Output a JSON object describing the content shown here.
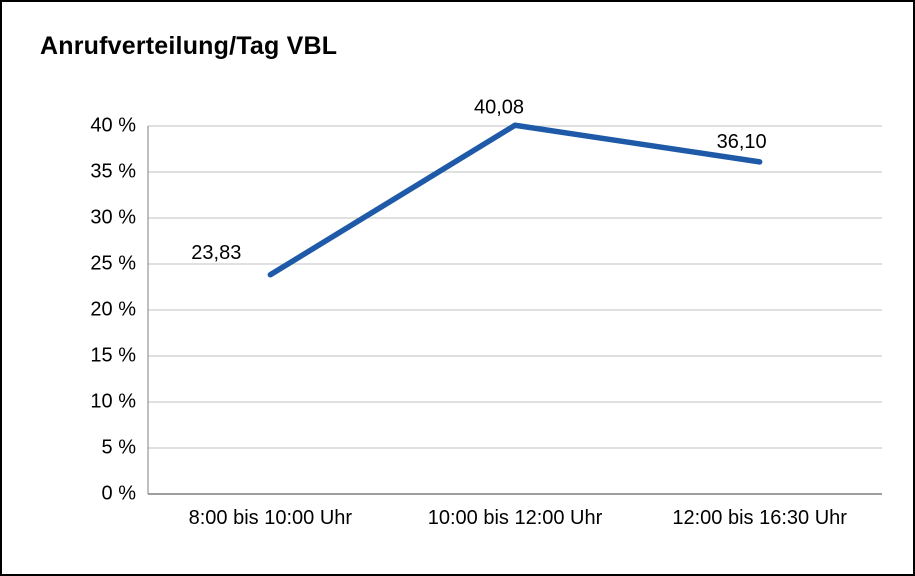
{
  "title": "Anrufverteilung/Tag VBL",
  "colors": {
    "line": "#1f5aa8",
    "grid": "#c0c0c0",
    "axis": "#7f7f7f",
    "text": "#000000",
    "frame_border": "#000000",
    "background": "#ffffff"
  },
  "chart_data": {
    "type": "line",
    "title": "Anrufverteilung/Tag VBL",
    "categories": [
      "8:00 bis 10:00 Uhr",
      "10:00 bis 12:00 Uhr",
      "12:00 bis 16:30 Uhr"
    ],
    "values": [
      23.83,
      40.08,
      36.1
    ],
    "value_labels": [
      "23,83",
      "40,08",
      "36,10"
    ],
    "xlabel": "",
    "ylabel": "",
    "ylim": [
      0,
      40
    ],
    "ytick_step": 5,
    "ytick_labels": [
      "0 %",
      "5 %",
      "10 %",
      "15 %",
      "20 %",
      "25 %",
      "30 %",
      "35 %",
      "40 %"
    ],
    "grid": true,
    "legend": "none"
  }
}
